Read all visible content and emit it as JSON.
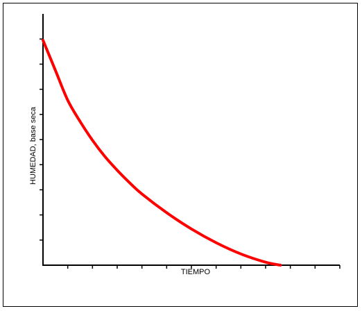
{
  "chart_data": {
    "type": "line",
    "title": "",
    "xlabel": "TIEMPO",
    "ylabel": "HUMEDAD, base seca",
    "xlim": [
      0,
      12
    ],
    "ylim": [
      0,
      9
    ],
    "x_tick_count": 12,
    "y_tick_count": 9,
    "tick_labels_shown": false,
    "grid": false,
    "legend": "none",
    "series": [
      {
        "color": "#ff0000",
        "x": [
          0,
          0.5,
          1,
          1.5,
          2,
          2.5,
          3,
          3.5,
          4,
          5,
          6,
          7,
          8,
          9,
          9.6
        ],
        "y": [
          9,
          7.8,
          6.6,
          5.75,
          5.0,
          4.35,
          3.8,
          3.3,
          2.85,
          2.1,
          1.45,
          0.9,
          0.45,
          0.12,
          0
        ]
      }
    ]
  }
}
